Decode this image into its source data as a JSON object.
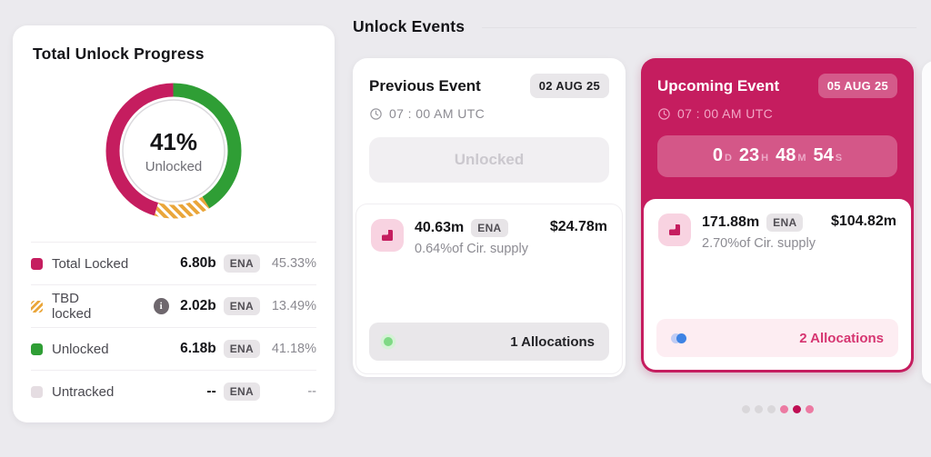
{
  "colors": {
    "accent_magenta": "#c51d5f",
    "green": "#2f9e35",
    "orange": "#eaa63a",
    "page_bg": "#ebeaee",
    "untracked_gray": "#e5dde2"
  },
  "left_panel": {
    "title": "Total Unlock Progress",
    "center_value": "41%",
    "center_label": "Unlocked",
    "legend": [
      {
        "label": "Total Locked",
        "value": "6.80b",
        "token": "ENA",
        "percent": "45.33%"
      },
      {
        "label": "TBD locked",
        "value": "2.02b",
        "token": "ENA",
        "percent": "13.49%",
        "info_icon": "i"
      },
      {
        "label": "Unlocked",
        "value": "6.18b",
        "token": "ENA",
        "percent": "41.18%"
      },
      {
        "label": "Untracked",
        "value": "--",
        "token": "ENA",
        "percent": "--"
      }
    ]
  },
  "chart_data": {
    "type": "pie",
    "title": "Total Unlock Progress",
    "center_label": "41% Unlocked",
    "layout": {
      "donut": true,
      "start_angle_deg": 0,
      "direction": "clockwise",
      "legend_position": "below"
    },
    "segments": [
      {
        "label": "Unlocked",
        "pct": 41.18,
        "color": "#2f9e35"
      },
      {
        "label": "TBD locked",
        "pct": 13.49,
        "color": "#eaa63a",
        "pattern": "diagonal-stripes"
      },
      {
        "label": "Total Locked",
        "pct": 45.33,
        "color": "#c51d5f"
      }
    ]
  },
  "events": {
    "title": "Unlock Events",
    "cards": [
      {
        "title": "Previous Event",
        "date_badge": "02 AUG 25",
        "time": "07 : 00 AM UTC",
        "status_button": "Unlocked",
        "amount": "40.63m",
        "token_badge": "ENA",
        "supply_pct": "0.64%",
        "supply_suffix": "of Cir. supply",
        "usd_value": "$24.78m",
        "allocations_label": "1 Allocations"
      },
      {
        "title": "Upcoming Event",
        "date_badge": "05 AUG 25",
        "time": "07 : 00 AM UTC",
        "countdown": {
          "days": "0",
          "days_unit": "D",
          "hours": "23",
          "hours_unit": "H",
          "minutes": "48",
          "minutes_unit": "M",
          "seconds": "54",
          "seconds_unit": "S"
        },
        "amount": "171.88m",
        "token_badge": "ENA",
        "supply_pct": "2.70%",
        "supply_suffix": "of Cir. supply",
        "usd_value": "$104.82m",
        "allocations_label": "2 Allocations"
      }
    ],
    "pagination": {
      "dots": [
        "inactive",
        "inactive",
        "inactive",
        "adjacent",
        "active",
        "adjacent"
      ]
    }
  }
}
